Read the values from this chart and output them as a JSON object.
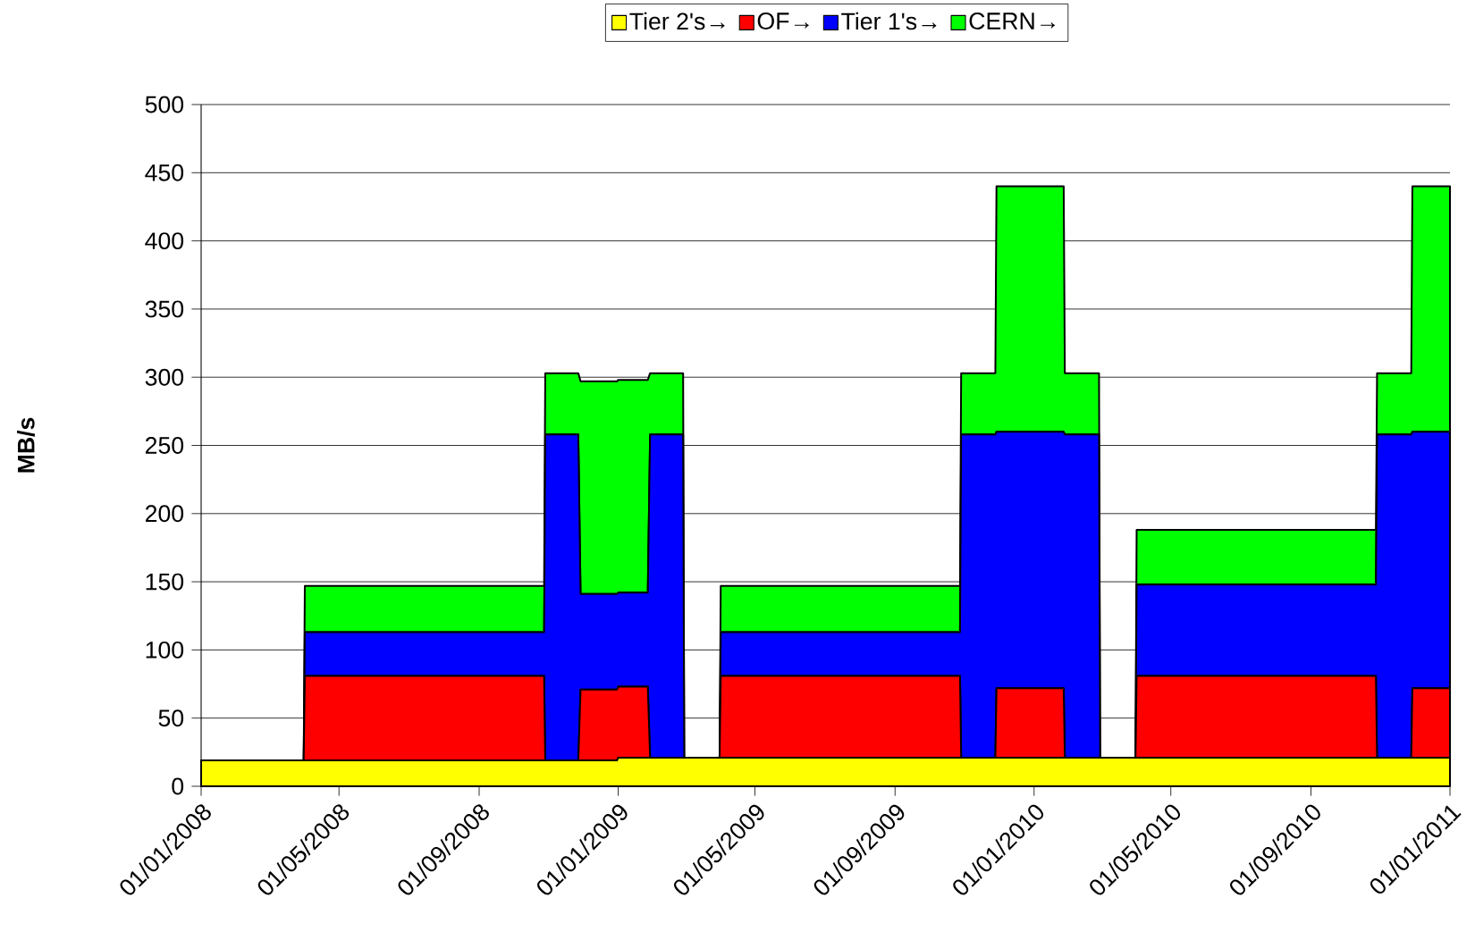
{
  "chart_data": {
    "type": "area",
    "stacked": true,
    "ylabel": "MB/s",
    "legend": "top",
    "grid": "y",
    "x": [
      "2008-01-01",
      "2008-03-31",
      "2008-04-01",
      "2008-10-28",
      "2008-10-29",
      "2008-11-27",
      "2008-11-29",
      "2008-12-31",
      "2009-01-01",
      "2009-01-27",
      "2009-01-29",
      "2009-02-27",
      "2009-02-28",
      "2009-03-31",
      "2009-04-01",
      "2009-10-28",
      "2009-10-29",
      "2009-11-28",
      "2009-11-29",
      "2010-01-27",
      "2010-01-28",
      "2010-02-27",
      "2010-02-28",
      "2010-03-31",
      "2010-04-01",
      "2010-10-28",
      "2010-10-29",
      "2010-11-28",
      "2010-11-29",
      "2011-01-01"
    ],
    "series": [
      {
        "name": "Tier 2's→",
        "color": "#ffff00",
        "values": [
          19,
          19,
          19,
          19,
          19,
          19,
          19,
          19,
          21,
          21,
          21,
          21,
          21,
          21,
          21,
          21,
          21,
          21,
          21,
          21,
          21,
          21,
          21,
          21,
          21,
          21,
          21,
          21,
          21,
          21
        ]
      },
      {
        "name": "OF→",
        "color": "#ff0000",
        "values": [
          0,
          0,
          62,
          62,
          0,
          0,
          52,
          52,
          52,
          52,
          0,
          0,
          0,
          0,
          60,
          60,
          0,
          0,
          51,
          51,
          0,
          0,
          0,
          0,
          60,
          60,
          0,
          0,
          51,
          51
        ]
      },
      {
        "name": "Tier 1's→",
        "color": "#0000ff",
        "values": [
          0,
          0,
          32,
          32,
          239,
          239,
          70,
          70,
          69,
          69,
          237,
          237,
          0,
          0,
          32,
          32,
          237,
          237,
          188,
          188,
          237,
          237,
          0,
          0,
          67,
          67,
          237,
          237,
          188,
          188
        ]
      },
      {
        "name": "CERN→",
        "color": "#00ff00",
        "values": [
          0,
          0,
          34,
          34,
          45,
          45,
          156,
          156,
          156,
          156,
          45,
          45,
          0,
          0,
          34,
          34,
          45,
          45,
          180,
          180,
          45,
          45,
          0,
          0,
          40,
          40,
          45,
          45,
          180,
          180
        ]
      }
    ],
    "xlim": [
      "2008-01-01",
      "2011-01-01"
    ],
    "xticks": [
      {
        "value": "2008-01-01",
        "label": "01/01/2008"
      },
      {
        "value": "2008-05-01",
        "label": "01/05/2008"
      },
      {
        "value": "2008-09-01",
        "label": "01/09/2008"
      },
      {
        "value": "2009-01-01",
        "label": "01/01/2009"
      },
      {
        "value": "2009-05-01",
        "label": "01/05/2009"
      },
      {
        "value": "2009-09-01",
        "label": "01/09/2009"
      },
      {
        "value": "2010-01-01",
        "label": "01/01/2010"
      },
      {
        "value": "2010-05-01",
        "label": "01/05/2010"
      },
      {
        "value": "2010-09-01",
        "label": "01/09/2010"
      },
      {
        "value": "2011-01-01",
        "label": "01/01/2011"
      }
    ],
    "ylim": [
      0,
      500
    ],
    "yticks": [
      0,
      50,
      100,
      150,
      200,
      250,
      300,
      350,
      400,
      450,
      500
    ]
  }
}
